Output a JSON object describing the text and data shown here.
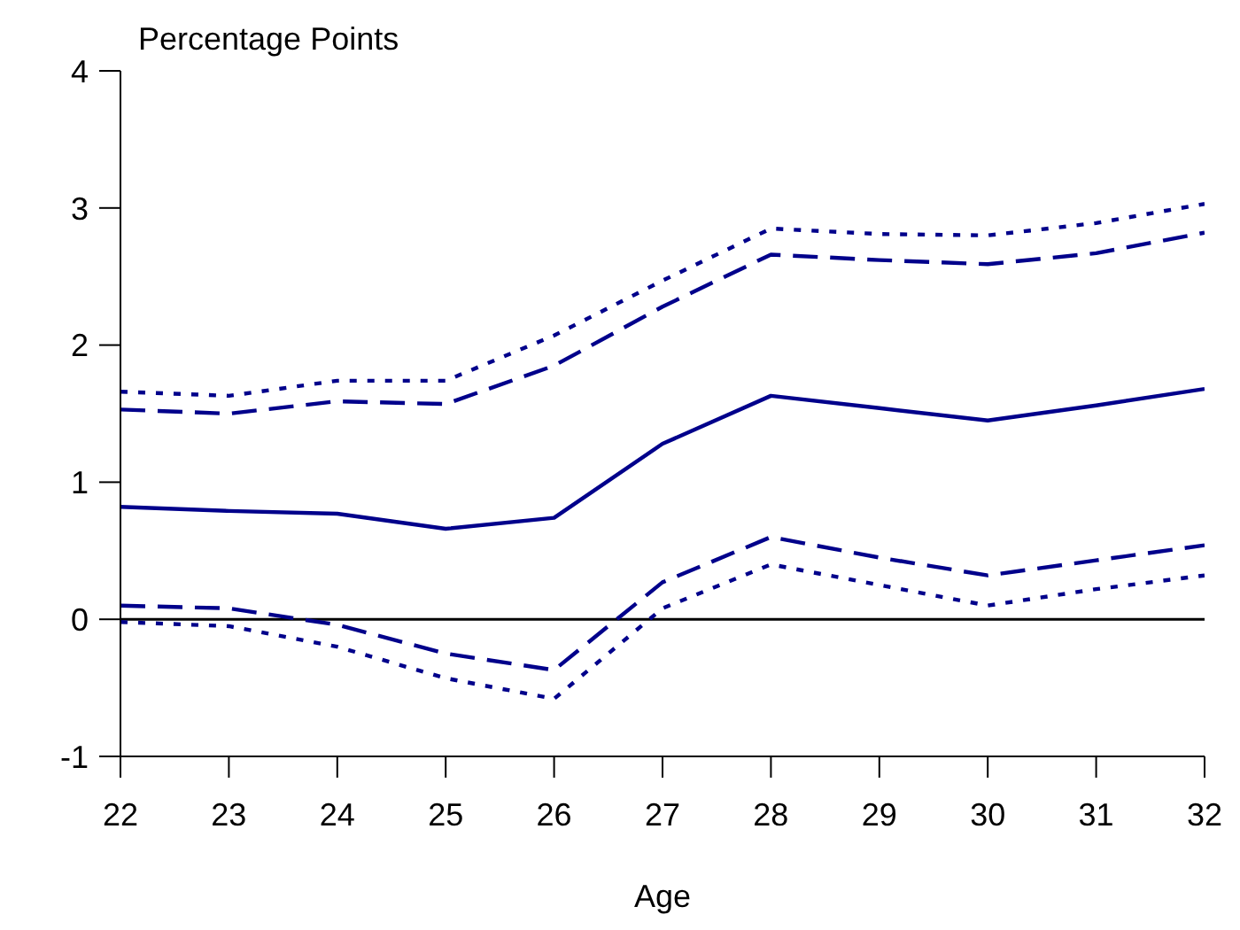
{
  "chart_data": {
    "type": "line",
    "xlabel": "Age",
    "ylabel": "Percentage Points",
    "x": [
      22,
      23,
      24,
      25,
      26,
      27,
      28,
      29,
      30,
      31,
      32
    ],
    "xlim": [
      22,
      32
    ],
    "xticks": [
      22,
      23,
      24,
      25,
      26,
      27,
      28,
      29,
      30,
      31,
      32
    ],
    "ylim": [
      -1,
      4
    ],
    "yticks": [
      -1,
      0,
      1,
      2,
      3,
      4
    ],
    "grid": false,
    "marker": "none",
    "ref_lines": [
      {
        "axis": "y",
        "value": 0,
        "color": "#000000",
        "line_style": "solid"
      }
    ],
    "series": [
      {
        "color": "#00008b",
        "line_style": "dotted",
        "values": [
          1.66,
          1.63,
          1.74,
          1.74,
          2.07,
          2.47,
          2.85,
          2.81,
          2.8,
          2.89,
          3.03
        ]
      },
      {
        "color": "#00008b",
        "line_style": "dashed",
        "values": [
          1.53,
          1.5,
          1.59,
          1.57,
          1.85,
          2.28,
          2.66,
          2.62,
          2.59,
          2.67,
          2.82
        ]
      },
      {
        "color": "#00008b",
        "line_style": "solid",
        "values": [
          0.82,
          0.79,
          0.77,
          0.66,
          0.74,
          1.28,
          1.63,
          1.54,
          1.45,
          1.56,
          1.68
        ]
      },
      {
        "color": "#00008b",
        "line_style": "dashed",
        "values": [
          0.1,
          0.08,
          -0.04,
          -0.25,
          -0.37,
          0.27,
          0.6,
          0.45,
          0.32,
          0.43,
          0.54
        ]
      },
      {
        "color": "#00008b",
        "line_style": "dotted",
        "values": [
          -0.02,
          -0.05,
          -0.2,
          -0.43,
          -0.58,
          0.08,
          0.4,
          0.25,
          0.1,
          0.22,
          0.32
        ]
      }
    ]
  }
}
